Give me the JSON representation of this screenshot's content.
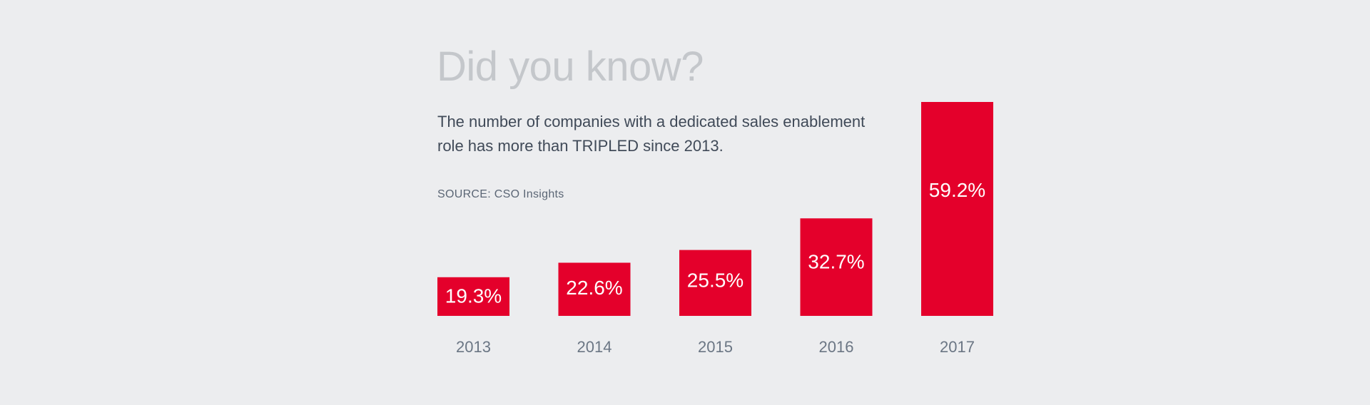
{
  "heading": "Did you know?",
  "description": "The number of companies with a dedicated sales enablement role has more than TRIPLED since 2013.",
  "source": "SOURCE: CSO Insights",
  "colors": {
    "bar": "#e4002b",
    "bar_label": "#ffffff",
    "category_label": "#6b7684",
    "background": "#ecedef"
  },
  "chart_data": {
    "type": "bar",
    "categories": [
      "2013",
      "2014",
      "2015",
      "2016",
      "2017"
    ],
    "values": [
      19.3,
      22.6,
      25.5,
      32.7,
      59.2
    ],
    "data_labels": [
      "19.3%",
      "22.6%",
      "25.5%",
      "32.7%",
      "59.2%"
    ],
    "unit": "%",
    "ylim": [
      10.5,
      59.2
    ],
    "grid": false,
    "legend": "none"
  }
}
